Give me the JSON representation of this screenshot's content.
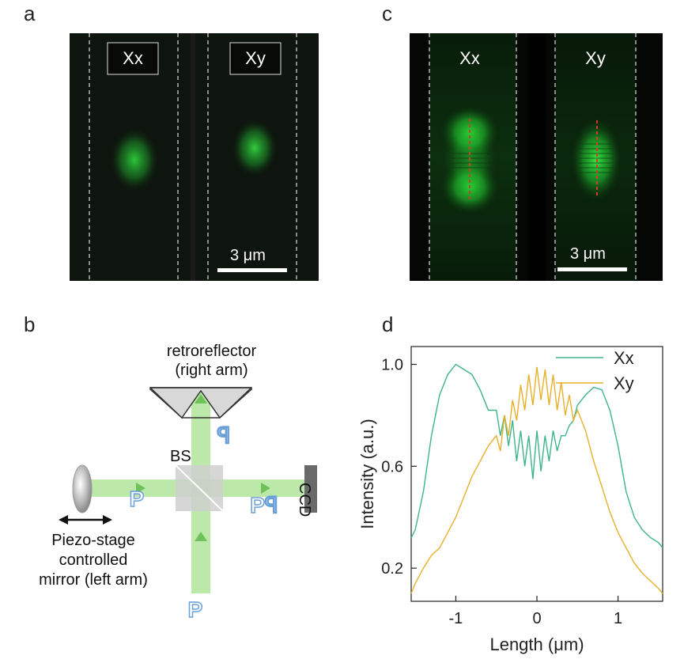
{
  "panels": {
    "a": {
      "letter": "a",
      "left_label": "Xx",
      "right_label": "Xy",
      "scale": "3 μm"
    },
    "c": {
      "letter": "c",
      "left_label": "Xx",
      "right_label": "Xy",
      "scale": "3 μm"
    },
    "b": {
      "letter": "b",
      "retro_line1": "retroreflector",
      "retro_line2": "(right arm)",
      "bs": "BS",
      "ccd": "CCD",
      "piezo_line1": "Piezo-stage",
      "piezo_line2": "controlled",
      "piezo_line3": "mirror (left arm)",
      "p_left": "P",
      "p_mid": "Pꟼ",
      "p_top": "ꟼ",
      "p_bottom": "P"
    },
    "d": {
      "letter": "d"
    }
  },
  "colors": {
    "xx": "#3cb58a",
    "xy": "#e8b02a",
    "beam": "#8fd87a",
    "green_spot": "#2ecc40"
  },
  "chart_data": {
    "type": "line",
    "xlabel": "Length (μm)",
    "ylabel": "Intensity (a.u.)",
    "xlim": [
      -1.55,
      1.55
    ],
    "ylim": [
      0.07,
      1.07
    ],
    "xticks": [
      "-1",
      "0",
      "1"
    ],
    "yticks": [
      "0.2",
      "0.6",
      "1.0"
    ],
    "legend_position": "top-right",
    "series": [
      {
        "name": "Xx",
        "x": [
          -1.55,
          -1.5,
          -1.4,
          -1.3,
          -1.2,
          -1.1,
          -1.0,
          -0.9,
          -0.8,
          -0.7,
          -0.6,
          -0.5,
          -0.45,
          -0.4,
          -0.35,
          -0.3,
          -0.25,
          -0.2,
          -0.15,
          -0.1,
          -0.05,
          0.0,
          0.05,
          0.1,
          0.15,
          0.2,
          0.25,
          0.3,
          0.35,
          0.4,
          0.45,
          0.5,
          0.6,
          0.7,
          0.8,
          0.9,
          1.0,
          1.1,
          1.2,
          1.3,
          1.4,
          1.5,
          1.55
        ],
        "y": [
          0.32,
          0.35,
          0.5,
          0.72,
          0.88,
          0.96,
          1.0,
          0.98,
          0.96,
          0.9,
          0.82,
          0.82,
          0.72,
          0.8,
          0.68,
          0.78,
          0.62,
          0.74,
          0.6,
          0.72,
          0.55,
          0.74,
          0.58,
          0.72,
          0.62,
          0.74,
          0.66,
          0.72,
          0.72,
          0.76,
          0.78,
          0.84,
          0.88,
          0.91,
          0.9,
          0.82,
          0.68,
          0.5,
          0.4,
          0.35,
          0.32,
          0.3,
          0.28
        ]
      },
      {
        "name": "Xy",
        "x": [
          -1.55,
          -1.5,
          -1.4,
          -1.3,
          -1.2,
          -1.1,
          -1.0,
          -0.9,
          -0.8,
          -0.7,
          -0.6,
          -0.5,
          -0.45,
          -0.4,
          -0.35,
          -0.3,
          -0.25,
          -0.2,
          -0.15,
          -0.1,
          -0.05,
          0.0,
          0.05,
          0.1,
          0.15,
          0.2,
          0.25,
          0.3,
          0.35,
          0.4,
          0.45,
          0.5,
          0.6,
          0.7,
          0.8,
          0.9,
          1.0,
          1.1,
          1.2,
          1.3,
          1.4,
          1.5,
          1.55
        ],
        "y": [
          0.1,
          0.14,
          0.2,
          0.25,
          0.28,
          0.34,
          0.4,
          0.48,
          0.56,
          0.62,
          0.68,
          0.72,
          0.66,
          0.8,
          0.72,
          0.86,
          0.78,
          0.92,
          0.82,
          0.96,
          0.84,
          0.99,
          0.86,
          0.98,
          0.84,
          0.96,
          0.82,
          0.93,
          0.8,
          0.88,
          0.78,
          0.82,
          0.74,
          0.62,
          0.52,
          0.42,
          0.34,
          0.28,
          0.22,
          0.18,
          0.15,
          0.12,
          0.1
        ]
      }
    ]
  }
}
